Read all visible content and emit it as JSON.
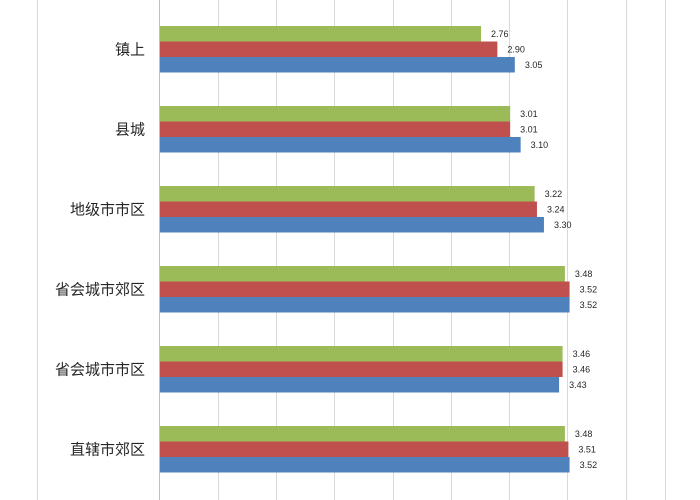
{
  "chart_data": {
    "type": "bar",
    "orientation": "horizontal",
    "categories": [
      "镇上",
      "县城",
      "地级市市区",
      "省会城市郊区",
      "省会城市市区",
      "直辖市郊区"
    ],
    "series": [
      {
        "values": [
          2.76,
          3.01,
          3.22,
          3.48,
          3.46,
          3.48
        ],
        "color": "#9bbb59"
      },
      {
        "values": [
          2.9,
          3.01,
          3.24,
          3.52,
          3.46,
          3.51
        ],
        "color": "#c0504d"
      },
      {
        "values": [
          3.05,
          3.1,
          3.3,
          3.52,
          3.43,
          3.52
        ],
        "color": "#4f81bd"
      }
    ],
    "xlim": [
      0,
      4
    ],
    "grid": true,
    "title": "",
    "xlabel": "",
    "ylabel": ""
  }
}
